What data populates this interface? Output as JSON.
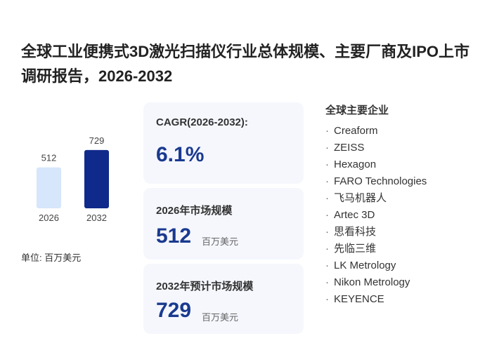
{
  "title": "全球工业便携式3D激光扫描仪行业总体规模、主要厂商及IPO上市调研报告，2026-2032",
  "chart_data": {
    "type": "bar",
    "categories": [
      "2026",
      "2032"
    ],
    "values": [
      512,
      729
    ],
    "colors": [
      "#d6e6fb",
      "#0f2a8a"
    ],
    "unit_label": "单位: 百万美元"
  },
  "cards": [
    {
      "label": "CAGR(2026-2032):",
      "value": "6.1%"
    },
    {
      "label": "2026年市场规模",
      "value": "512",
      "unit": "百万美元"
    },
    {
      "label": "2032年预计市场规模",
      "value": "729",
      "unit": "百万美元"
    }
  ],
  "companies": {
    "heading": "全球主要企业",
    "items": [
      "Creaform",
      "ZEISS",
      "Hexagon",
      "FARO Technologies",
      "飞马机器人",
      "Artec 3D",
      "思看科技",
      "先临三维",
      "LK Metrology",
      "Nikon Metrology",
      "KEYENCE"
    ]
  }
}
